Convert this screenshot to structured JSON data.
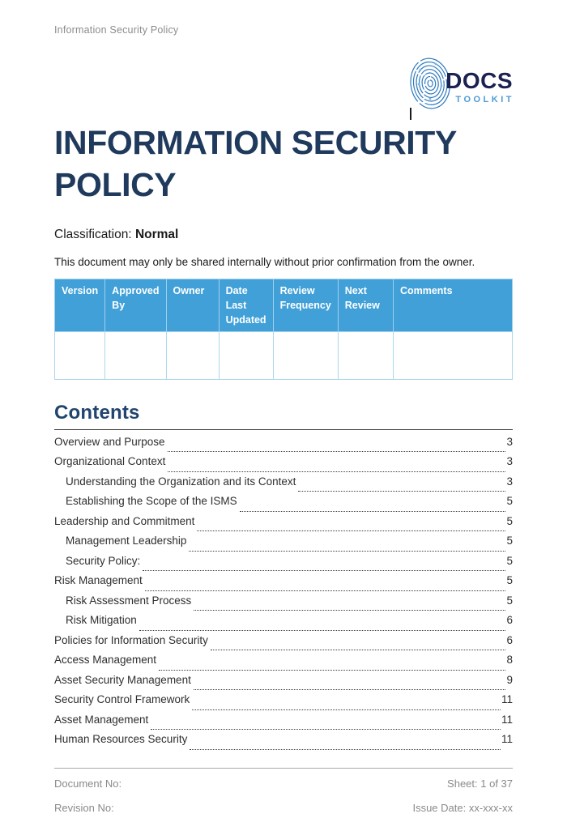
{
  "running_header": "Information Security Policy",
  "logo": {
    "name": "DOCS",
    "subtitle": "TOOLKIT"
  },
  "title": "INFORMATION SECURITY POLICY",
  "classification": {
    "label": "Classification: ",
    "value": "Normal"
  },
  "notice": "This document may only be shared internally without prior confirmation from the owner.",
  "revision_table": {
    "headers": [
      "Version",
      "Approved By",
      "Owner",
      "Date Last Updated",
      "Review Frequency",
      "Next Review",
      "Comments"
    ],
    "rows": [
      [
        "",
        "",
        "",
        "",
        "",
        "",
        ""
      ]
    ]
  },
  "contents": {
    "heading": "Contents",
    "entries": [
      {
        "label": "Overview and Purpose",
        "page": "3",
        "level": 1
      },
      {
        "label": "Organizational Context",
        "page": "3",
        "level": 1
      },
      {
        "label": "Understanding the Organization and its Context",
        "page": "3",
        "level": 2
      },
      {
        "label": "Establishing the Scope of the ISMS",
        "page": "5",
        "level": 2
      },
      {
        "label": "Leadership and Commitment",
        "page": "5",
        "level": 1
      },
      {
        "label": "Management Leadership",
        "page": "5",
        "level": 2
      },
      {
        "label": "Security Policy:",
        "page": "5",
        "level": 2
      },
      {
        "label": "Risk Management",
        "page": "5",
        "level": 1
      },
      {
        "label": "Risk Assessment Process",
        "page": "5",
        "level": 2
      },
      {
        "label": "Risk Mitigation",
        "page": "6",
        "level": 2
      },
      {
        "label": "Policies for Information Security",
        "page": "6",
        "level": 1
      },
      {
        "label": "Access Management",
        "page": "8",
        "level": 1
      },
      {
        "label": "Asset Security Management",
        "page": "9",
        "level": 1
      },
      {
        "label": "Security Control Framework",
        "page": "11",
        "level": 1
      },
      {
        "label": "Asset Management",
        "page": "11",
        "level": 1
      },
      {
        "label": "Human Resources Security",
        "page": "11",
        "level": 1
      }
    ]
  },
  "footer": {
    "document_no_label": "Document No:",
    "sheet": "Sheet: 1 of 37",
    "revision_no_label": "Revision No:",
    "issue_date": "Issue Date: xx-xxx-xx"
  },
  "colors": {
    "accent_blue": "#41a0d8",
    "table_border_blue": "#abd7ee",
    "title_navy": "#1f3a5c",
    "logo_navy": "#1b2150",
    "logo_blue": "#4d9bd5",
    "footer_gray": "#8a8a8a"
  }
}
